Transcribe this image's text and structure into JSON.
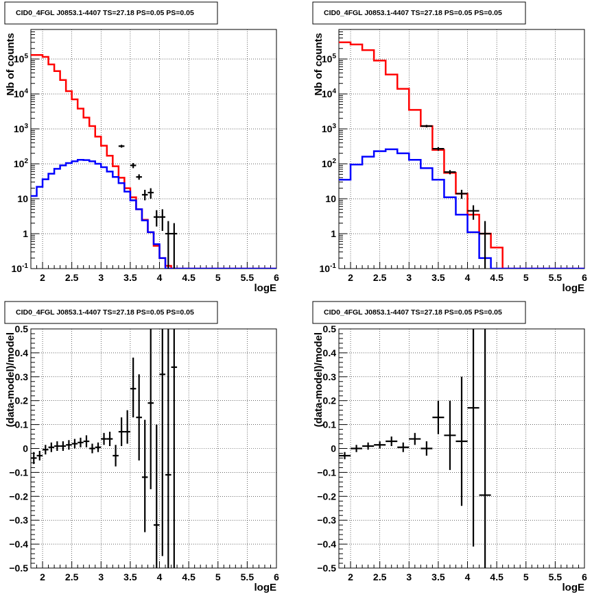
{
  "chart_data": [
    {
      "type": "line",
      "title": "CID0_4FGL J0853.1-4407 TS=27.18 PS=0.05 PS=0.05",
      "xlabel": "logE",
      "ylabel": "Nb of counts",
      "xlim": [
        1.8,
        6
      ],
      "ylim": [
        0.1,
        700000
      ],
      "yscale": "log",
      "grid": true,
      "x_ticks": [
        "2",
        "2.5",
        "3",
        "3.5",
        "4",
        "4.5",
        "5",
        "5.5",
        "6"
      ],
      "y_ticks": [
        "10",
        "1",
        "10^-1",
        "10^2",
        "10^3",
        "10^4",
        "10^5"
      ],
      "x_edges": [
        1.8,
        1.9,
        2.0,
        2.1,
        2.2,
        2.3,
        2.4,
        2.5,
        2.6,
        2.7,
        2.8,
        2.9,
        3.0,
        3.1,
        3.2,
        3.3,
        3.4,
        3.5,
        3.6,
        3.7,
        3.8,
        3.9,
        4.0,
        4.1,
        4.2,
        4.3,
        4.4,
        4.5,
        4.6,
        4.7,
        4.8,
        4.9,
        5.0,
        5.1,
        5.2,
        5.3,
        5.4,
        5.5,
        5.6,
        5.7,
        5.8,
        5.9,
        6.0
      ],
      "series": [
        {
          "color": "#ff0000",
          "values": [
            130000,
            130000,
            115000,
            70000,
            45000,
            25000,
            12000,
            7000,
            3800,
            2100,
            1200,
            600,
            330,
            170,
            85,
            40,
            20,
            11,
            5,
            2.5,
            1.1,
            0.45,
            0.2,
            0.12,
            0.1,
            0.1,
            0.1,
            0.1,
            0.1,
            0.1,
            0.1,
            0.1,
            0.1,
            0.1,
            0.1,
            0.1,
            0.1,
            0.1,
            0.1,
            0.1,
            0.1,
            0.1
          ]
        },
        {
          "color": "#0000ff",
          "values": [
            12,
            22,
            36,
            52,
            72,
            90,
            105,
            118,
            130,
            128,
            118,
            100,
            80,
            60,
            42,
            28,
            16,
            9,
            5,
            2.4,
            1.1,
            0.5,
            0.2,
            0.1,
            0.1,
            0.1,
            0.1,
            0.1,
            0.1,
            0.1,
            0.1,
            0.1,
            0.1,
            0.1,
            0.1,
            0.1,
            0.1,
            0.1,
            0.1,
            0.1,
            0.1,
            0.1
          ]
        }
      ],
      "data_points": [
        {
          "x": 3.35,
          "y": 320,
          "xerr": 0.05,
          "ylo": 290,
          "yhi": 350
        },
        {
          "x": 3.55,
          "y": 90,
          "xerr": 0.05,
          "ylo": 75,
          "yhi": 105
        },
        {
          "x": 3.65,
          "y": 42,
          "xerr": 0.05,
          "ylo": 35,
          "yhi": 50
        },
        {
          "x": 3.75,
          "y": 13,
          "xerr": 0.05,
          "ylo": 9,
          "yhi": 18
        },
        {
          "x": 3.85,
          "y": 15,
          "xerr": 0.05,
          "ylo": 10,
          "yhi": 20
        },
        {
          "x": 3.95,
          "y": 3,
          "xerr": 0.05,
          "ylo": 1.6,
          "yhi": 4.7
        },
        {
          "x": 4.05,
          "y": 3,
          "xerr": 0.05,
          "ylo": 1.2,
          "yhi": 5
        },
        {
          "x": 4.15,
          "y": 1,
          "xerr": 0.05,
          "ylo": 0.1,
          "yhi": 2.3
        },
        {
          "x": 4.25,
          "y": 1,
          "xerr": 0.05,
          "ylo": 0.1,
          "yhi": 2
        }
      ]
    },
    {
      "type": "line",
      "title": "CID0_4FGL J0853.1-4407 TS=27.18 PS=0.05 PS=0.05",
      "xlabel": "logE",
      "ylabel": "Nb of counts",
      "xlim": [
        1.8,
        6
      ],
      "ylim": [
        0.1,
        700000
      ],
      "yscale": "log",
      "grid": true,
      "x_ticks": [
        "2",
        "2.5",
        "3",
        "3.5",
        "4",
        "4.5",
        "5",
        "5.5",
        "6"
      ],
      "y_ticks": [
        "10",
        "1",
        "10^-1",
        "10^2",
        "10^3",
        "10^4",
        "10^5"
      ],
      "x_edges": [
        1.8,
        2.0,
        2.2,
        2.4,
        2.6,
        2.8,
        3.0,
        3.2,
        3.4,
        3.6,
        3.8,
        4.0,
        4.2,
        4.4,
        4.6,
        4.8,
        5.0,
        5.2,
        5.4,
        5.6,
        5.8,
        6.0
      ],
      "series": [
        {
          "color": "#ff0000",
          "values": [
            300000,
            260000,
            180000,
            90000,
            36000,
            14000,
            3500,
            1200,
            250,
            55,
            14,
            3.5,
            1,
            0.4,
            0.1,
            0.1,
            0.1,
            0.1,
            0.1,
            0.1,
            0.1
          ]
        },
        {
          "color": "#0000ff",
          "values": [
            35,
            95,
            160,
            230,
            260,
            200,
            130,
            75,
            35,
            11,
            3.5,
            1.1,
            0.2,
            0.1,
            0.1,
            0.1,
            0.1,
            0.1,
            0.1,
            0.1,
            0.1
          ]
        }
      ],
      "data_points": [
        {
          "x": 3.3,
          "y": 1200,
          "xerr": 0.1,
          "ylo": 1100,
          "yhi": 1300
        },
        {
          "x": 3.5,
          "y": 270,
          "xerr": 0.1,
          "ylo": 240,
          "yhi": 300
        },
        {
          "x": 3.7,
          "y": 58,
          "xerr": 0.1,
          "ylo": 50,
          "yhi": 66
        },
        {
          "x": 3.9,
          "y": 14,
          "xerr": 0.1,
          "ylo": 10,
          "yhi": 18
        },
        {
          "x": 4.1,
          "y": 4.5,
          "xerr": 0.1,
          "ylo": 2.5,
          "yhi": 6.5
        },
        {
          "x": 4.3,
          "y": 1,
          "xerr": 0.1,
          "ylo": 0.1,
          "yhi": 2.3
        }
      ]
    },
    {
      "type": "scatter",
      "title": "CID0_4FGL J0853.1-4407 TS=27.18 PS=0.05 PS=0.05",
      "xlabel": "logE",
      "ylabel": "(data-model)/model",
      "xlim": [
        1.8,
        6
      ],
      "ylim": [
        -0.5,
        0.5
      ],
      "grid": true,
      "x_ticks": [
        "2",
        "2.5",
        "3",
        "3.5",
        "4",
        "4.5",
        "5",
        "5.5",
        "6"
      ],
      "y_ticks": [
        "-0.5",
        "-0.4",
        "-0.3",
        "-0.2",
        "-0.1",
        "0",
        "0.1",
        "0.2",
        "0.3",
        "0.4",
        "0.5"
      ],
      "points": [
        {
          "x": 1.85,
          "y": -0.04,
          "xerr": 0.05,
          "ylo": -0.065,
          "yhi": -0.015
        },
        {
          "x": 1.95,
          "y": -0.03,
          "xerr": 0.05,
          "ylo": -0.05,
          "yhi": -0.01
        },
        {
          "x": 2.05,
          "y": -0.005,
          "xerr": 0.05,
          "ylo": -0.025,
          "yhi": 0.015
        },
        {
          "x": 2.15,
          "y": 0.005,
          "xerr": 0.05,
          "ylo": -0.015,
          "yhi": 0.025
        },
        {
          "x": 2.25,
          "y": 0.01,
          "xerr": 0.05,
          "ylo": -0.01,
          "yhi": 0.03
        },
        {
          "x": 2.35,
          "y": 0.01,
          "xerr": 0.05,
          "ylo": -0.01,
          "yhi": 0.03
        },
        {
          "x": 2.45,
          "y": 0.015,
          "xerr": 0.05,
          "ylo": -0.005,
          "yhi": 0.035
        },
        {
          "x": 2.55,
          "y": 0.02,
          "xerr": 0.05,
          "ylo": 0.0,
          "yhi": 0.04
        },
        {
          "x": 2.65,
          "y": 0.025,
          "xerr": 0.05,
          "ylo": 0.005,
          "yhi": 0.045
        },
        {
          "x": 2.75,
          "y": 0.03,
          "xerr": 0.05,
          "ylo": 0.005,
          "yhi": 0.055
        },
        {
          "x": 2.85,
          "y": 0.0,
          "xerr": 0.05,
          "ylo": -0.02,
          "yhi": 0.02
        },
        {
          "x": 2.95,
          "y": 0.005,
          "xerr": 0.05,
          "ylo": -0.015,
          "yhi": 0.025
        },
        {
          "x": 3.05,
          "y": 0.04,
          "xerr": 0.05,
          "ylo": 0.015,
          "yhi": 0.065
        },
        {
          "x": 3.15,
          "y": 0.04,
          "xerr": 0.05,
          "ylo": 0.01,
          "yhi": 0.07
        },
        {
          "x": 3.25,
          "y": -0.03,
          "xerr": 0.05,
          "ylo": -0.075,
          "yhi": 0.015
        },
        {
          "x": 3.35,
          "y": 0.07,
          "xerr": 0.05,
          "ylo": 0.01,
          "yhi": 0.13
        },
        {
          "x": 3.45,
          "y": 0.07,
          "xerr": 0.05,
          "ylo": 0.02,
          "yhi": 0.16
        },
        {
          "x": 3.55,
          "y": 0.25,
          "xerr": 0.05,
          "ylo": 0.13,
          "yhi": 0.38
        },
        {
          "x": 3.65,
          "y": 0.13,
          "xerr": 0.05,
          "ylo": -0.05,
          "yhi": 0.31
        },
        {
          "x": 3.75,
          "y": -0.12,
          "xerr": 0.05,
          "ylo": -0.35,
          "yhi": 0.12
        },
        {
          "x": 3.85,
          "y": 0.19,
          "xerr": 0.05,
          "ylo": -0.17,
          "yhi": 0.5
        },
        {
          "x": 3.95,
          "y": -0.32,
          "xerr": 0.05,
          "ylo": -0.5,
          "yhi": 0.1
        },
        {
          "x": 4.05,
          "y": 0.31,
          "xerr": 0.05,
          "ylo": -0.45,
          "yhi": 0.5
        },
        {
          "x": 4.15,
          "y": -0.11,
          "xerr": 0.05,
          "ylo": -0.5,
          "yhi": 0.5
        },
        {
          "x": 4.25,
          "y": 0.34,
          "xerr": 0.05,
          "ylo": -0.5,
          "yhi": 0.5
        }
      ]
    },
    {
      "type": "scatter",
      "title": "CID0_4FGL J0853.1-4407 TS=27.18 PS=0.05 PS=0.05",
      "xlabel": "logE",
      "ylabel": "(data-model)/model",
      "xlim": [
        1.8,
        6
      ],
      "ylim": [
        -0.5,
        0.5
      ],
      "grid": true,
      "x_ticks": [
        "2",
        "2.5",
        "3",
        "3.5",
        "4",
        "4.5",
        "5",
        "5.5",
        "6"
      ],
      "y_ticks": [
        "-0.5",
        "-0.4",
        "-0.3",
        "-0.2",
        "-0.1",
        "0",
        "0.1",
        "0.2",
        "0.3",
        "0.4",
        "0.5"
      ],
      "points": [
        {
          "x": 1.9,
          "y": -0.03,
          "xerr": 0.1,
          "ylo": -0.045,
          "yhi": -0.015
        },
        {
          "x": 2.1,
          "y": 0.0,
          "xerr": 0.1,
          "ylo": -0.015,
          "yhi": 0.015
        },
        {
          "x": 2.3,
          "y": 0.01,
          "xerr": 0.1,
          "ylo": -0.005,
          "yhi": 0.025
        },
        {
          "x": 2.5,
          "y": 0.015,
          "xerr": 0.1,
          "ylo": 0.0,
          "yhi": 0.03
        },
        {
          "x": 2.7,
          "y": 0.03,
          "xerr": 0.1,
          "ylo": 0.01,
          "yhi": 0.05
        },
        {
          "x": 2.9,
          "y": 0.005,
          "xerr": 0.1,
          "ylo": -0.015,
          "yhi": 0.025
        },
        {
          "x": 3.1,
          "y": 0.04,
          "xerr": 0.1,
          "ylo": 0.015,
          "yhi": 0.065
        },
        {
          "x": 3.3,
          "y": 0.0,
          "xerr": 0.1,
          "ylo": -0.03,
          "yhi": 0.03
        },
        {
          "x": 3.5,
          "y": 0.13,
          "xerr": 0.1,
          "ylo": 0.06,
          "yhi": 0.2
        },
        {
          "x": 3.7,
          "y": 0.055,
          "xerr": 0.1,
          "ylo": -0.09,
          "yhi": 0.2
        },
        {
          "x": 3.9,
          "y": 0.03,
          "xerr": 0.1,
          "ylo": -0.24,
          "yhi": 0.3
        },
        {
          "x": 4.1,
          "y": 0.17,
          "xerr": 0.1,
          "ylo": -0.41,
          "yhi": 0.5
        },
        {
          "x": 4.3,
          "y": -0.195,
          "xerr": 0.1,
          "ylo": -0.5,
          "yhi": 0.5
        }
      ]
    }
  ]
}
